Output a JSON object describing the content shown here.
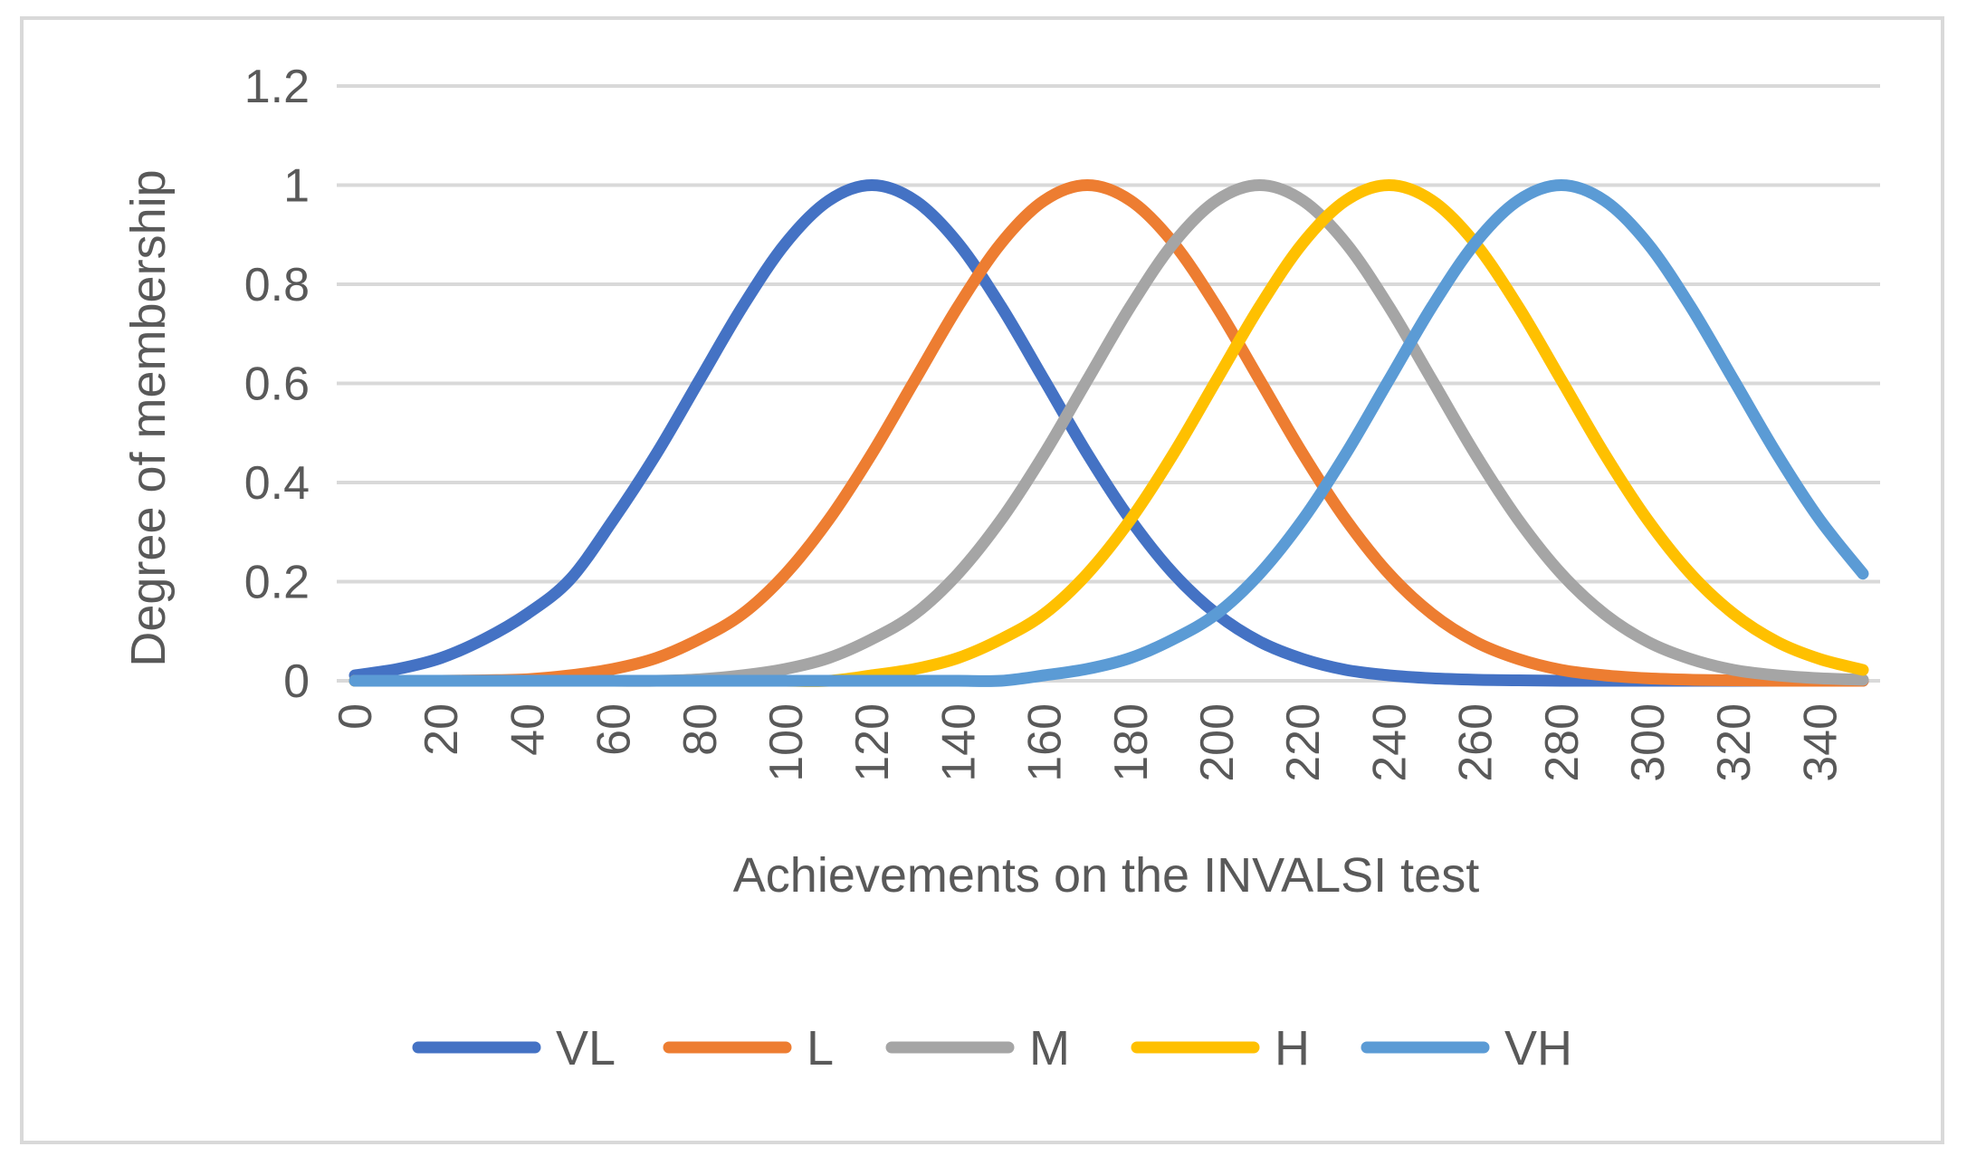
{
  "chart_data": {
    "type": "line",
    "title": "",
    "xlabel": "Achievements on the INVALSI test",
    "ylabel": "Degree of membership",
    "xlim": [
      0,
      350
    ],
    "ylim": [
      0,
      1.2
    ],
    "grid": true,
    "legend_position": "bottom",
    "x_ticks": [
      0,
      20,
      40,
      60,
      80,
      100,
      120,
      140,
      160,
      180,
      200,
      220,
      240,
      260,
      280,
      300,
      320,
      340
    ],
    "x_tick_labels": [
      "0",
      "20",
      "40",
      "60",
      "80",
      "100",
      "120",
      "140",
      "160",
      "180",
      "200",
      "220",
      "240",
      "260",
      "280",
      "300",
      "320",
      "340"
    ],
    "y_ticks": [
      0,
      0.2,
      0.4,
      0.6,
      0.8,
      1,
      1.2
    ],
    "y_tick_labels": [
      "0",
      "0.2",
      "0.4",
      "0.6",
      "0.8",
      "1",
      "1.2"
    ],
    "x": [
      0,
      10,
      20,
      30,
      40,
      50,
      60,
      70,
      80,
      90,
      100,
      110,
      120,
      130,
      140,
      150,
      160,
      170,
      180,
      190,
      200,
      210,
      220,
      230,
      240,
      250,
      260,
      270,
      280,
      290,
      300,
      310,
      320,
      330,
      340,
      350
    ],
    "series": [
      {
        "name": "VL",
        "color": "#4472c4",
        "values": [
          0.011,
          0.024,
          0.046,
          0.084,
          0.135,
          0.205,
          0.325,
          0.458,
          0.607,
          0.755,
          0.883,
          0.969,
          1.0,
          0.969,
          0.883,
          0.755,
          0.607,
          0.458,
          0.325,
          0.216,
          0.135,
          0.079,
          0.044,
          0.022,
          0.011,
          0.005,
          0.002,
          0.001,
          0.0,
          0.0,
          0.0,
          0.0,
          0.0,
          0.0,
          0.0,
          0.0
        ]
      },
      {
        "name": "L",
        "color": "#ed7d31",
        "values": [
          0.0,
          0.0,
          0.0,
          0.001,
          0.003,
          0.011,
          0.024,
          0.046,
          0.084,
          0.135,
          0.216,
          0.325,
          0.458,
          0.607,
          0.755,
          0.883,
          0.969,
          1.0,
          0.969,
          0.883,
          0.755,
          0.607,
          0.458,
          0.325,
          0.216,
          0.135,
          0.079,
          0.044,
          0.022,
          0.011,
          0.005,
          0.002,
          0.001,
          0.0,
          0.0,
          0.0
        ]
      },
      {
        "name": "M",
        "color": "#a5a5a5",
        "values": [
          0.0,
          0.0,
          0.0,
          0.0,
          0.0,
          0.0,
          0.0,
          0.0,
          0.003,
          0.011,
          0.024,
          0.046,
          0.084,
          0.135,
          0.216,
          0.325,
          0.458,
          0.607,
          0.755,
          0.883,
          0.969,
          1.0,
          0.969,
          0.883,
          0.755,
          0.607,
          0.458,
          0.325,
          0.216,
          0.135,
          0.079,
          0.044,
          0.022,
          0.011,
          0.005,
          0.002
        ]
      },
      {
        "name": "H",
        "color": "#ffc000",
        "values": [
          0.0,
          0.0,
          0.0,
          0.0,
          0.0,
          0.0,
          0.0,
          0.0,
          0.0,
          0.0,
          0.0,
          0.0,
          0.011,
          0.024,
          0.046,
          0.084,
          0.135,
          0.216,
          0.325,
          0.458,
          0.607,
          0.755,
          0.883,
          0.969,
          1.0,
          0.969,
          0.883,
          0.755,
          0.607,
          0.458,
          0.325,
          0.216,
          0.135,
          0.079,
          0.044,
          0.022
        ]
      },
      {
        "name": "VH",
        "color": "#5b9bd5",
        "values": [
          0.0,
          0.0,
          0.0,
          0.0,
          0.0,
          0.0,
          0.0,
          0.0,
          0.0,
          0.0,
          0.0,
          0.0,
          0.0,
          0.0,
          0.0,
          0.0,
          0.011,
          0.024,
          0.046,
          0.084,
          0.135,
          0.216,
          0.325,
          0.458,
          0.607,
          0.755,
          0.883,
          0.969,
          1.0,
          0.969,
          0.883,
          0.755,
          0.607,
          0.458,
          0.325,
          0.216
        ]
      }
    ]
  }
}
